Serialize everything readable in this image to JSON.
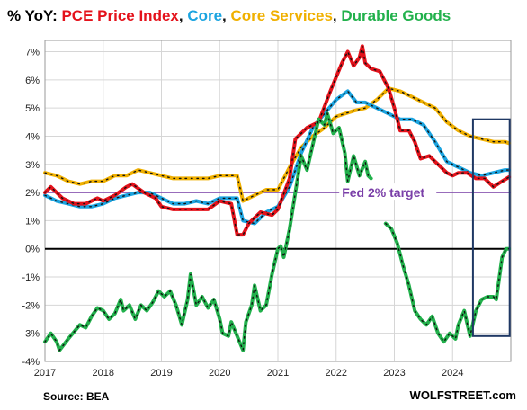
{
  "title": {
    "prefix": "% YoY: ",
    "segments": [
      {
        "text": "PCE Price Index",
        "color": "#e4121b"
      },
      {
        "text": ", ",
        "color": "#111111"
      },
      {
        "text": "Core",
        "color": "#1ba4e0"
      },
      {
        "text": ", ",
        "color": "#111111"
      },
      {
        "text": "Core Services",
        "color": "#f0b000"
      },
      {
        "text": ", ",
        "color": "#111111"
      },
      {
        "text": "Durable Goods",
        "color": "#22b14c"
      }
    ]
  },
  "footer": {
    "source": "Source: BEA",
    "brand": "WOLFSTREET.com"
  },
  "chart_data": {
    "type": "line",
    "x_ticks": [
      "2017",
      "2018",
      "2019",
      "2020",
      "2021",
      "2022",
      "2023",
      "2024"
    ],
    "y_ticks": [
      "-4%",
      "-3%",
      "-2%",
      "-1%",
      "0%",
      "1%",
      "2%",
      "3%",
      "4%",
      "5%",
      "6%",
      "7%"
    ],
    "xlim": [
      2017.0,
      2025.0
    ],
    "ylim": [
      -4,
      7.4
    ],
    "grid": true,
    "reference_line": {
      "label": "Fed 2% target",
      "value": 2,
      "color": "#7a3fa8"
    },
    "zero_line": 0,
    "highlight_box": {
      "x_start": 2024.35,
      "x_end": 2024.98,
      "y_start": -3.1,
      "y_end": 4.6,
      "color": "#1f3864"
    },
    "series": [
      {
        "name": "Core Services",
        "color": "#f0b000",
        "points": [
          [
            2017.0,
            2.7
          ],
          [
            2017.2,
            2.6
          ],
          [
            2017.4,
            2.4
          ],
          [
            2017.6,
            2.3
          ],
          [
            2017.8,
            2.4
          ],
          [
            2018.0,
            2.4
          ],
          [
            2018.2,
            2.6
          ],
          [
            2018.4,
            2.6
          ],
          [
            2018.6,
            2.8
          ],
          [
            2018.8,
            2.7
          ],
          [
            2019.0,
            2.6
          ],
          [
            2019.2,
            2.5
          ],
          [
            2019.4,
            2.5
          ],
          [
            2019.6,
            2.5
          ],
          [
            2019.8,
            2.5
          ],
          [
            2020.0,
            2.6
          ],
          [
            2020.3,
            2.6
          ],
          [
            2020.4,
            1.7
          ],
          [
            2020.6,
            1.9
          ],
          [
            2020.8,
            2.1
          ],
          [
            2021.0,
            2.1
          ],
          [
            2021.2,
            2.9
          ],
          [
            2021.4,
            3.6
          ],
          [
            2021.6,
            4.0
          ],
          [
            2021.8,
            4.3
          ],
          [
            2022.0,
            4.7
          ],
          [
            2022.3,
            4.9
          ],
          [
            2022.5,
            5.0
          ],
          [
            2022.7,
            5.3
          ],
          [
            2022.9,
            5.7
          ],
          [
            2023.1,
            5.6
          ],
          [
            2023.3,
            5.4
          ],
          [
            2023.5,
            5.2
          ],
          [
            2023.7,
            5.0
          ],
          [
            2023.9,
            4.5
          ],
          [
            2024.1,
            4.2
          ],
          [
            2024.3,
            4.0
          ],
          [
            2024.5,
            3.9
          ],
          [
            2024.7,
            3.8
          ],
          [
            2024.9,
            3.8
          ],
          [
            2024.97,
            3.75
          ]
        ]
      },
      {
        "name": "Core",
        "color": "#1ba4e0",
        "points": [
          [
            2017.0,
            1.9
          ],
          [
            2017.2,
            1.7
          ],
          [
            2017.4,
            1.6
          ],
          [
            2017.6,
            1.5
          ],
          [
            2017.8,
            1.5
          ],
          [
            2018.0,
            1.6
          ],
          [
            2018.2,
            1.8
          ],
          [
            2018.4,
            1.9
          ],
          [
            2018.6,
            2.0
          ],
          [
            2018.8,
            2.0
          ],
          [
            2019.0,
            1.8
          ],
          [
            2019.2,
            1.6
          ],
          [
            2019.4,
            1.6
          ],
          [
            2019.6,
            1.7
          ],
          [
            2019.8,
            1.6
          ],
          [
            2020.0,
            1.8
          ],
          [
            2020.3,
            1.8
          ],
          [
            2020.4,
            1.0
          ],
          [
            2020.6,
            0.9
          ],
          [
            2020.8,
            1.3
          ],
          [
            2021.0,
            1.5
          ],
          [
            2021.2,
            2.2
          ],
          [
            2021.4,
            3.4
          ],
          [
            2021.6,
            4.3
          ],
          [
            2021.8,
            4.8
          ],
          [
            2022.0,
            5.3
          ],
          [
            2022.2,
            5.6
          ],
          [
            2022.35,
            5.2
          ],
          [
            2022.5,
            5.2
          ],
          [
            2022.7,
            5.0
          ],
          [
            2022.9,
            4.8
          ],
          [
            2023.1,
            4.6
          ],
          [
            2023.3,
            4.6
          ],
          [
            2023.5,
            4.4
          ],
          [
            2023.7,
            3.8
          ],
          [
            2023.9,
            3.1
          ],
          [
            2024.1,
            2.9
          ],
          [
            2024.3,
            2.7
          ],
          [
            2024.5,
            2.6
          ],
          [
            2024.7,
            2.7
          ],
          [
            2024.9,
            2.8
          ],
          [
            2024.97,
            2.8
          ]
        ]
      },
      {
        "name": "PCE Price Index",
        "color": "#e4121b",
        "points": [
          [
            2017.0,
            2.0
          ],
          [
            2017.1,
            2.2
          ],
          [
            2017.3,
            1.8
          ],
          [
            2017.5,
            1.6
          ],
          [
            2017.7,
            1.6
          ],
          [
            2017.9,
            1.8
          ],
          [
            2018.0,
            1.7
          ],
          [
            2018.2,
            1.9
          ],
          [
            2018.4,
            2.2
          ],
          [
            2018.5,
            2.3
          ],
          [
            2018.7,
            2.0
          ],
          [
            2018.9,
            1.8
          ],
          [
            2019.0,
            1.5
          ],
          [
            2019.2,
            1.4
          ],
          [
            2019.4,
            1.4
          ],
          [
            2019.6,
            1.4
          ],
          [
            2019.8,
            1.4
          ],
          [
            2020.0,
            1.7
          ],
          [
            2020.2,
            1.6
          ],
          [
            2020.3,
            0.5
          ],
          [
            2020.4,
            0.5
          ],
          [
            2020.5,
            0.9
          ],
          [
            2020.7,
            1.3
          ],
          [
            2020.9,
            1.2
          ],
          [
            2021.0,
            1.4
          ],
          [
            2021.2,
            2.5
          ],
          [
            2021.3,
            3.9
          ],
          [
            2021.5,
            4.3
          ],
          [
            2021.7,
            4.5
          ],
          [
            2021.9,
            5.6
          ],
          [
            2022.0,
            6.1
          ],
          [
            2022.1,
            6.6
          ],
          [
            2022.2,
            7.0
          ],
          [
            2022.3,
            6.5
          ],
          [
            2022.4,
            6.8
          ],
          [
            2022.45,
            7.2
          ],
          [
            2022.5,
            6.6
          ],
          [
            2022.6,
            6.4
          ],
          [
            2022.75,
            6.3
          ],
          [
            2022.9,
            5.7
          ],
          [
            2023.0,
            5.0
          ],
          [
            2023.1,
            4.2
          ],
          [
            2023.25,
            4.2
          ],
          [
            2023.35,
            3.8
          ],
          [
            2023.45,
            3.2
          ],
          [
            2023.6,
            3.3
          ],
          [
            2023.75,
            3.0
          ],
          [
            2023.9,
            2.7
          ],
          [
            2024.0,
            2.6
          ],
          [
            2024.1,
            2.7
          ],
          [
            2024.25,
            2.7
          ],
          [
            2024.4,
            2.5
          ],
          [
            2024.55,
            2.5
          ],
          [
            2024.7,
            2.2
          ],
          [
            2024.85,
            2.4
          ],
          [
            2024.97,
            2.55
          ]
        ]
      },
      {
        "name": "Durable Goods",
        "color": "#22b14c",
        "points": [
          [
            2017.0,
            -3.3
          ],
          [
            2017.1,
            -3.0
          ],
          [
            2017.2,
            -3.3
          ],
          [
            2017.25,
            -3.6
          ],
          [
            2017.4,
            -3.2
          ],
          [
            2017.6,
            -2.7
          ],
          [
            2017.7,
            -2.8
          ],
          [
            2017.8,
            -2.4
          ],
          [
            2017.9,
            -2.1
          ],
          [
            2018.0,
            -2.2
          ],
          [
            2018.1,
            -2.5
          ],
          [
            2018.2,
            -2.3
          ],
          [
            2018.3,
            -1.8
          ],
          [
            2018.35,
            -2.2
          ],
          [
            2018.45,
            -2.0
          ],
          [
            2018.55,
            -2.5
          ],
          [
            2018.65,
            -2.0
          ],
          [
            2018.75,
            -2.2
          ],
          [
            2018.85,
            -1.9
          ],
          [
            2018.95,
            -1.5
          ],
          [
            2019.05,
            -1.7
          ],
          [
            2019.15,
            -1.5
          ],
          [
            2019.25,
            -2.0
          ],
          [
            2019.35,
            -2.7
          ],
          [
            2019.45,
            -1.8
          ],
          [
            2019.5,
            -0.9
          ],
          [
            2019.6,
            -2.0
          ],
          [
            2019.7,
            -1.7
          ],
          [
            2019.8,
            -2.1
          ],
          [
            2019.9,
            -1.8
          ],
          [
            2020.0,
            -2.5
          ],
          [
            2020.05,
            -3.0
          ],
          [
            2020.15,
            -3.1
          ],
          [
            2020.2,
            -2.6
          ],
          [
            2020.3,
            -3.1
          ],
          [
            2020.4,
            -3.6
          ],
          [
            2020.45,
            -2.6
          ],
          [
            2020.55,
            -2.0
          ],
          [
            2020.6,
            -1.3
          ],
          [
            2020.7,
            -2.2
          ],
          [
            2020.8,
            -2.0
          ],
          [
            2020.9,
            -0.9
          ],
          [
            2021.0,
            0.0
          ],
          [
            2021.05,
            0.1
          ],
          [
            2021.1,
            -0.3
          ],
          [
            2021.2,
            0.7
          ],
          [
            2021.3,
            2.0
          ],
          [
            2021.4,
            3.3
          ],
          [
            2021.5,
            2.8
          ],
          [
            2021.6,
            3.7
          ],
          [
            2021.7,
            4.6
          ],
          [
            2021.8,
            4.4
          ],
          [
            2021.85,
            4.8
          ],
          [
            2021.95,
            4.1
          ],
          [
            2022.05,
            4.3
          ],
          [
            2022.15,
            3.4
          ],
          [
            2022.2,
            2.4
          ],
          [
            2022.3,
            3.3
          ],
          [
            2022.4,
            2.6
          ],
          [
            2022.5,
            3.1
          ],
          [
            2022.55,
            2.6
          ],
          [
            2022.6,
            2.5
          ]
        ]
      },
      {
        "name": "Durable Goods",
        "color": "#22b14c",
        "points": [
          [
            2022.85,
            0.9
          ],
          [
            2022.95,
            0.7
          ],
          [
            2023.05,
            0.2
          ],
          [
            2023.15,
            -0.6
          ],
          [
            2023.25,
            -1.3
          ],
          [
            2023.35,
            -2.2
          ],
          [
            2023.45,
            -2.5
          ],
          [
            2023.55,
            -2.7
          ],
          [
            2023.65,
            -2.4
          ],
          [
            2023.75,
            -3.0
          ],
          [
            2023.85,
            -3.3
          ],
          [
            2023.95,
            -3.0
          ],
          [
            2024.05,
            -3.2
          ],
          [
            2024.1,
            -2.7
          ],
          [
            2024.2,
            -2.2
          ],
          [
            2024.3,
            -3.1
          ],
          [
            2024.4,
            -2.2
          ],
          [
            2024.5,
            -1.8
          ],
          [
            2024.6,
            -1.7
          ],
          [
            2024.7,
            -1.7
          ],
          [
            2024.75,
            -1.8
          ],
          [
            2024.85,
            -0.3
          ],
          [
            2024.92,
            0.0
          ],
          [
            2024.97,
            0.0
          ]
        ]
      }
    ]
  }
}
